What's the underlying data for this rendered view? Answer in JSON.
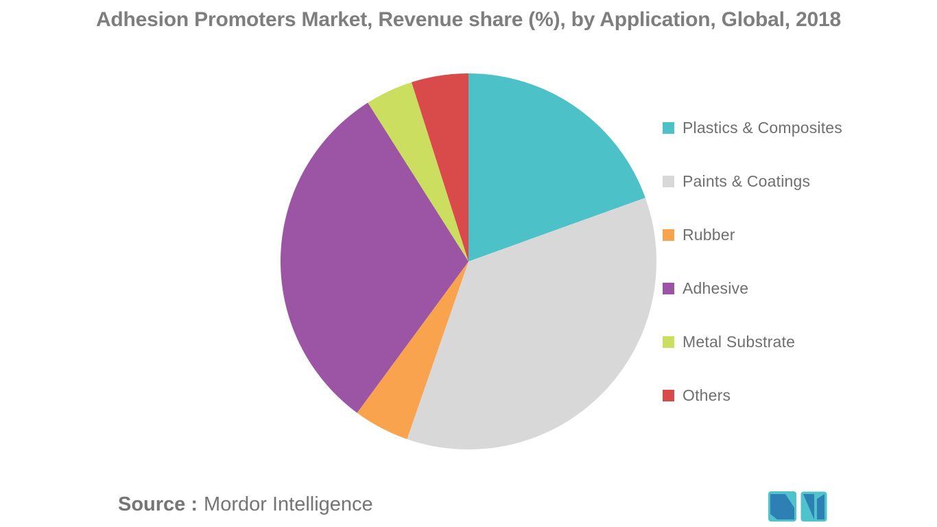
{
  "chart_data": {
    "type": "pie",
    "title": "Adhesion Promoters Market, Revenue share (%), by Application, Global, 2018",
    "categories": [
      "Plastics & Composites",
      "Paints & Coatings",
      "Rubber",
      "Adhesive",
      "Metal Substrate",
      "Others"
    ],
    "values": [
      19.5,
      35.8,
      4.8,
      30.9,
      4.1,
      4.9
    ],
    "unit": "%",
    "colors": [
      "#4cc1c7",
      "#d8d8d8",
      "#faa34e",
      "#9c55a4",
      "#ccde5f",
      "#d94a4a"
    ],
    "start_angle_deg": -90,
    "direction": "clockwise",
    "legend_position": "right",
    "data_labels": false
  },
  "source": {
    "prefix": "Source :",
    "name": "Mordor Intelligence"
  },
  "logo": {
    "name": "mordor-intelligence-logo",
    "teal": "#4fc3cb",
    "blue": "#2e7fb4"
  },
  "colors": {
    "title_text": "#7e7e7e",
    "legend_text": "#6f6f6f",
    "source_text": "#757575",
    "background": "#ffffff"
  }
}
